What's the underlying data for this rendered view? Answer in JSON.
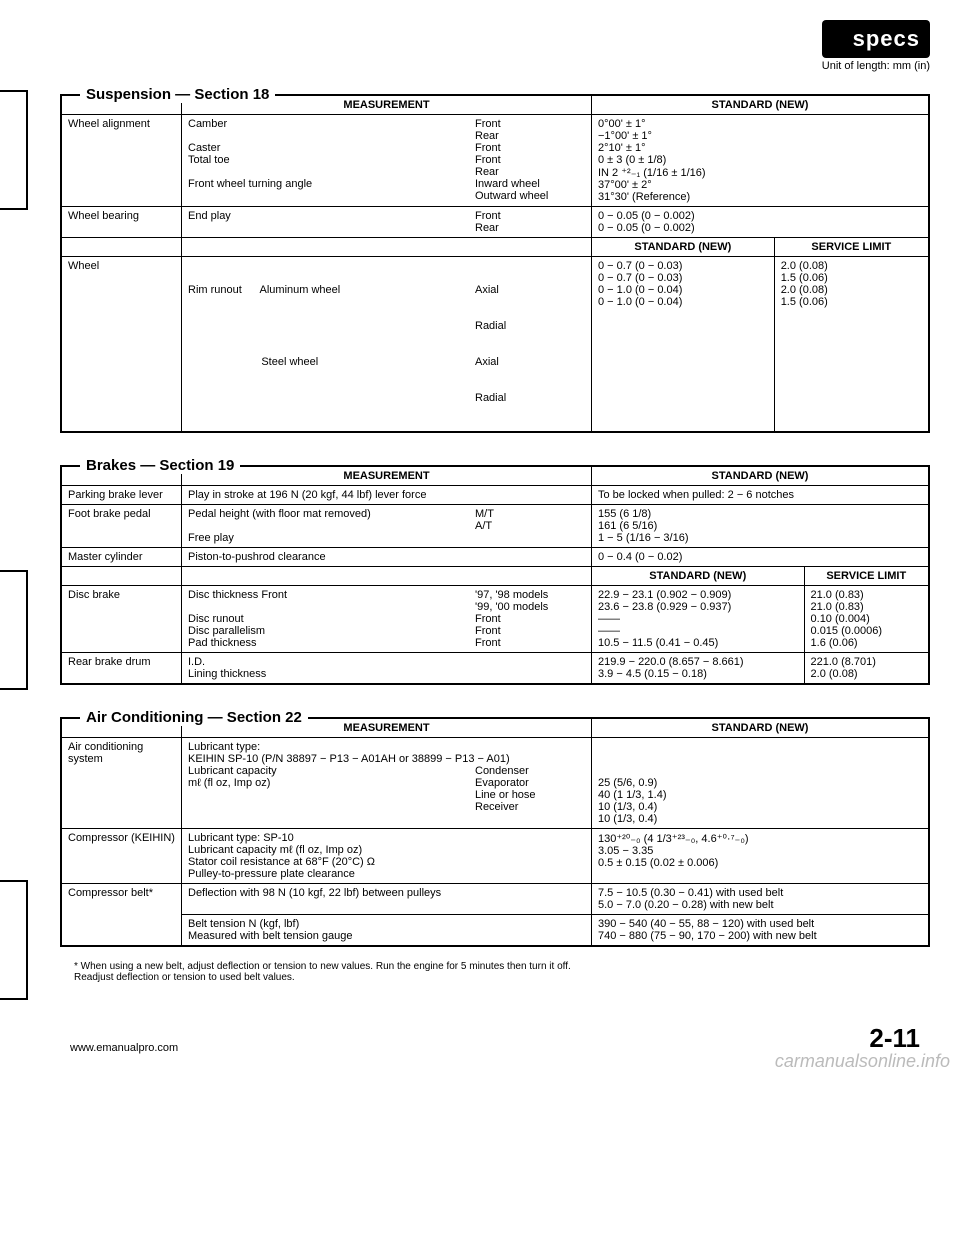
{
  "header": {
    "badge": "specs",
    "unit": "Unit of length: mm (in)"
  },
  "suspension": {
    "title": "Suspension — Section 18",
    "headers": {
      "measurement": "MEASUREMENT",
      "standard": "STANDARD (NEW)",
      "service": "SERVICE LIMIT"
    },
    "alignment": {
      "label": "Wheel alignment",
      "rows": [
        {
          "m": "Camber",
          "p": "Front",
          "v": "0°00' ± 1°"
        },
        {
          "m": "",
          "p": "Rear",
          "v": "−1°00' ± 1°"
        },
        {
          "m": "Caster",
          "p": "Front",
          "v": "2°10' ± 1°"
        },
        {
          "m": "Total toe",
          "p": "Front",
          "v": "0 ± 3 (0 ± 1/8)"
        },
        {
          "m": "",
          "p": "Rear",
          "v": "IN 2 ⁺²₋₁ (1/16 ± 1/16)"
        },
        {
          "m": "Front wheel turning angle",
          "p": "Inward wheel",
          "v": "37°00' ± 2°"
        },
        {
          "m": "",
          "p": "Outward wheel",
          "v": "31°30' (Reference)"
        }
      ]
    },
    "bearing": {
      "label": "Wheel bearing",
      "rows": [
        {
          "m": "End play",
          "p": "Front",
          "v": "0 − 0.05 (0 − 0.002)"
        },
        {
          "m": "",
          "p": "Rear",
          "v": "0 − 0.05 (0 − 0.002)"
        }
      ]
    },
    "wheel": {
      "label": "Wheel",
      "rows": [
        {
          "m": "Rim runout      Aluminum wheel",
          "p": "Axial",
          "v": "0 − 0.7 (0 − 0.03)",
          "s": "2.0 (0.08)"
        },
        {
          "m": "",
          "p": "Radial",
          "v": "0 − 0.7 (0 − 0.03)",
          "s": "1.5 (0.06)"
        },
        {
          "m": "                        Steel wheel",
          "p": "Axial",
          "v": "0 − 1.0 (0 − 0.04)",
          "s": "2.0 (0.08)"
        },
        {
          "m": "",
          "p": "Radial",
          "v": "0 − 1.0 (0 − 0.04)",
          "s": "1.5 (0.06)"
        }
      ]
    }
  },
  "brakes": {
    "title": "Brakes — Section 19",
    "parking": {
      "label": "Parking brake lever",
      "m": "Play in stroke at 196 N (20 kgf, 44 lbf) lever force",
      "v": "To be locked when pulled: 2 − 6 notches"
    },
    "pedal": {
      "label": "Foot brake pedal",
      "rows": [
        {
          "m": "Pedal height (with floor mat removed)",
          "p": "M/T",
          "v": "155 (6 1/8)"
        },
        {
          "m": "",
          "p": "A/T",
          "v": "161 (6 5/16)"
        },
        {
          "m": "Free play",
          "p": "",
          "v": "1 − 5 (1/16 − 3/16)"
        }
      ]
    },
    "master": {
      "label": "Master cylinder",
      "m": "Piston-to-pushrod clearance",
      "v": "0 − 0.4 (0 − 0.02)"
    },
    "disc": {
      "label": "Disc brake",
      "rows": [
        {
          "m": "Disc thickness          Front",
          "p": "'97, '98 models",
          "v": "22.9 − 23.1 (0.902 − 0.909)",
          "s": "21.0 (0.83)"
        },
        {
          "m": "",
          "p": "'99, '00 models",
          "v": "23.6 − 23.8 (0.929 − 0.937)",
          "s": "21.0 (0.83)"
        },
        {
          "m": "Disc runout",
          "p": "Front",
          "v": "——",
          "s": "0.10 (0.004)"
        },
        {
          "m": "Disc parallelism",
          "p": "Front",
          "v": "——",
          "s": "0.015 (0.0006)"
        },
        {
          "m": "Pad thickness",
          "p": "Front",
          "v": "10.5 − 11.5 (0.41 − 0.45)",
          "s": "1.6 (0.06)"
        }
      ]
    },
    "drum": {
      "label": "Rear brake drum",
      "rows": [
        {
          "m": "I.D.",
          "v": "219.9 − 220.0 (8.657 − 8.661)",
          "s": "221.0 (8.701)"
        },
        {
          "m": "Lining thickness",
          "v": "3.9 − 4.5 (0.15 − 0.18)",
          "s": "2.0 (0.08)"
        }
      ]
    }
  },
  "ac": {
    "title": "Air Conditioning — Section 22",
    "system": {
      "label": "Air conditioning system",
      "lube_type": "Lubricant type:\nKEIHIN SP-10 (P/N 38897 − P13 − A01AH or 38899 − P13 − A01)",
      "rows": [
        {
          "m": "Lubricant capacity",
          "p": "Condenser",
          "v": "25 (5/6, 0.9)"
        },
        {
          "m": "mℓ (fl oz, Imp oz)",
          "p": "Evaporator",
          "v": "40 (1 1/3, 1.4)"
        },
        {
          "m": "",
          "p": "Line or hose",
          "v": "10 (1/3, 0.4)"
        },
        {
          "m": "",
          "p": "Receiver",
          "v": "10 (1/3, 0.4)"
        }
      ]
    },
    "compressor": {
      "label": "Compressor (KEIHIN)",
      "rows": [
        {
          "m": "Lubricant type: SP-10",
          "v": ""
        },
        {
          "m": "Lubricant capacity   mℓ (fl oz, Imp oz)",
          "v": "130⁺²⁰₋₀ (4 1/3⁺²³₋₀, 4.6⁺⁰·⁷₋₀)"
        },
        {
          "m": "Stator coil resistance at 68°F (20°C) Ω",
          "v": "3.05 − 3.35"
        },
        {
          "m": "Pulley-to-pressure plate clearance",
          "v": "0.5 ± 0.15 (0.02 ± 0.006)"
        }
      ]
    },
    "belt": {
      "label": "Compressor belt*",
      "rows": [
        {
          "m": "Deflection with 98 N (10 kgf, 22 lbf) between pulleys",
          "v": "7.5 − 10.5 (0.30 − 0.41) with used belt\n5.0 − 7.0 (0.20 − 0.28) with new belt"
        },
        {
          "m": "Belt tension   N (kgf, lbf)\nMeasured with belt tension gauge",
          "v": "390 − 540 (40 − 55, 88 − 120) with used belt\n740 − 880 (75 − 90, 170 − 200) with new belt"
        }
      ]
    },
    "footnote": "* When using a new belt, adjust deflection or tension to new values. Run the engine for 5 minutes then turn it off.\n   Readjust deflection or tension to used belt values."
  },
  "footer": {
    "url": "www.emanualpro.com",
    "page": "2-11",
    "watermark": "carmanualsonline.info"
  }
}
